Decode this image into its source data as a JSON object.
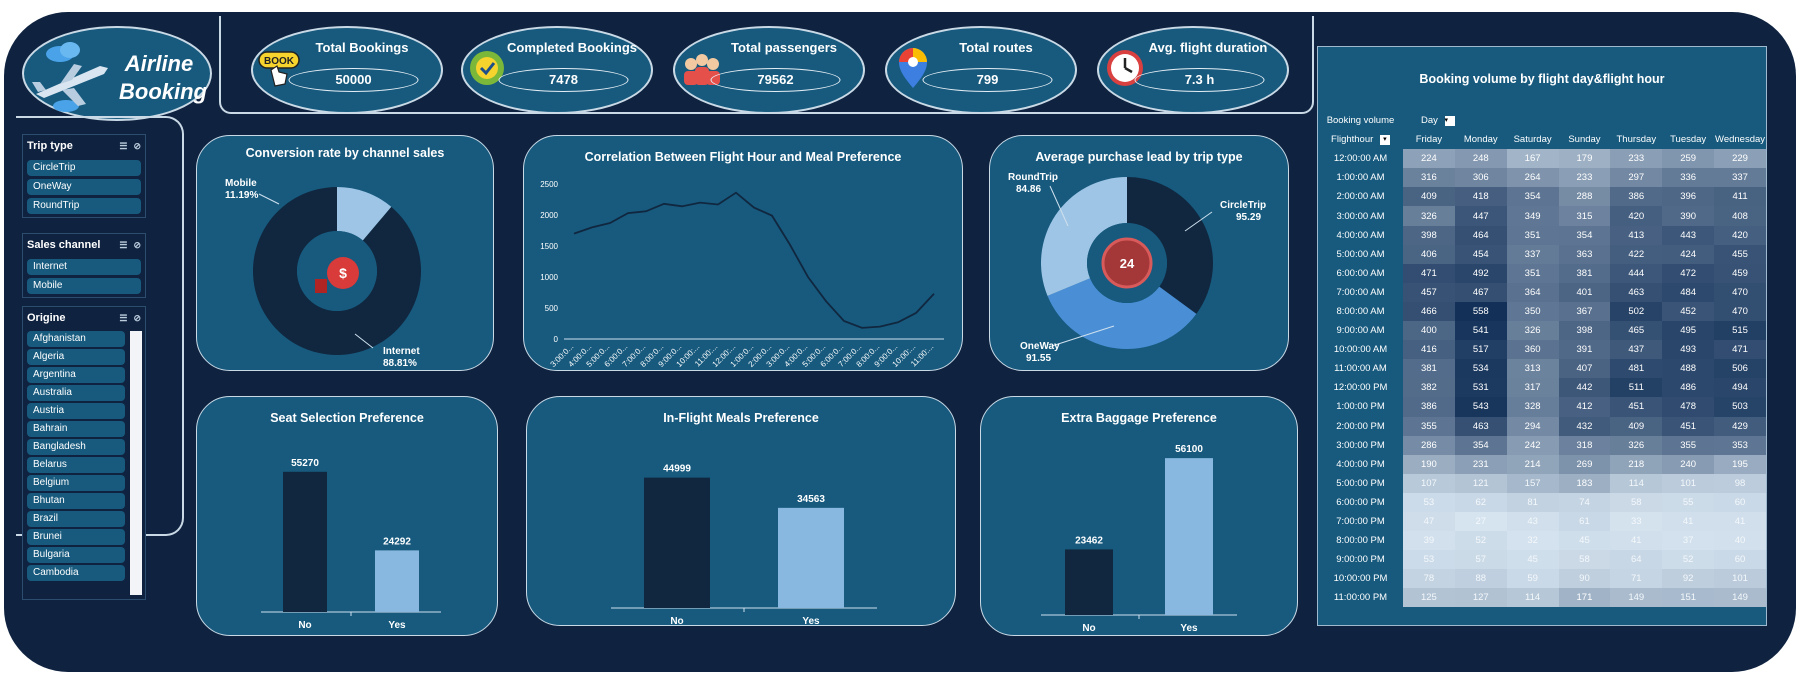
{
  "logo": {
    "line1": "Airline",
    "line2": "Booking"
  },
  "kpis": [
    {
      "label": "Total Bookings",
      "value": "50000",
      "icon": "book-icon",
      "icon_text": "BOOK"
    },
    {
      "label": "Completed Bookings",
      "value": "7478",
      "icon": "check-badge-icon"
    },
    {
      "label": "Total passengers",
      "value": "79562",
      "icon": "people-icon"
    },
    {
      "label": "Total routes",
      "value": "799",
      "icon": "map-pin-icon"
    },
    {
      "label": "Avg. flight duration",
      "value": "7.3  h",
      "icon": "clock-icon"
    }
  ],
  "slicers": {
    "trip_type": {
      "title": "Trip type",
      "items": [
        "CircleTrip",
        "OneWay",
        "RoundTrip"
      ]
    },
    "sales_channel": {
      "title": "Sales channel",
      "items": [
        "Internet",
        "Mobile"
      ]
    },
    "origine": {
      "title": "Origine",
      "items": [
        "Afghanistan",
        "Algeria",
        "Argentina",
        "Australia",
        "Austria",
        "Bahrain",
        "Bangladesh",
        "Belarus",
        "Belgium",
        "Bhutan",
        "Brazil",
        "Brunei",
        "Bulgaria",
        "Cambodia"
      ]
    }
  },
  "colors": {
    "dark": "#10273f",
    "mid": "#4a8fd6",
    "light": "#9ec5e6",
    "bar_light": "#88b8df",
    "card": "#175a7e"
  },
  "chart_data": [
    {
      "type": "pie",
      "title": "Conversion rate by channel sales",
      "categories": [
        "Mobile",
        "Internet"
      ],
      "values": [
        11.19,
        88.81
      ],
      "labels": [
        "11.19%",
        "88.81%"
      ]
    },
    {
      "type": "line",
      "title": "Correlation Between Flight Hour and Meal Preference",
      "x": [
        "3:00:0...",
        "4:00:0...",
        "5:00:0...",
        "6:00:0...",
        "7:00:0...",
        "8:00:0...",
        "9:00:0...",
        "10:00:...",
        "11:00:...",
        "12:00:...",
        "1:00:0...",
        "2:00:0...",
        "3:00:0...",
        "4:00:0...",
        "5:00:0...",
        "6:00:0...",
        "7:00:0...",
        "8:00:0...",
        "9:00:0...",
        "10:00:...",
        "11:00:..."
      ],
      "values": [
        1700,
        1800,
        1870,
        2030,
        2060,
        2180,
        2140,
        2200,
        2170,
        2360,
        2120,
        1990,
        1520,
        1000,
        610,
        290,
        180,
        200,
        270,
        420,
        730
      ],
      "ylim": [
        0,
        2500
      ],
      "yticks": [
        "0",
        "500",
        "1000",
        "1500",
        "2000",
        "2500"
      ]
    },
    {
      "type": "pie",
      "title": "Average purchase lead by trip type",
      "categories": [
        "CircleTrip",
        "OneWay",
        "RoundTrip"
      ],
      "values": [
        95.29,
        91.55,
        84.86
      ],
      "labels": [
        "95.29",
        "91.55",
        "84.86"
      ]
    },
    {
      "type": "bar",
      "title": "Seat Selection Preference",
      "categories": [
        "No",
        "Yes"
      ],
      "values": [
        55270,
        24292
      ]
    },
    {
      "type": "bar",
      "title": "In-Flight Meals Preference",
      "categories": [
        "No",
        "Yes"
      ],
      "values": [
        44999,
        34563
      ]
    },
    {
      "type": "bar",
      "title": "Extra Baggage Preference",
      "categories": [
        "No",
        "Yes"
      ],
      "values": [
        23462,
        56100
      ]
    },
    {
      "type": "heatmap",
      "title": "Booking volume by flight day&flight hour",
      "corner_label": "Booking volume",
      "column_field": "Day",
      "row_field": "Flighthour",
      "columns": [
        "Friday",
        "Monday",
        "Saturday",
        "Sunday",
        "Thursday",
        "Tuesday",
        "Wednesday"
      ],
      "rows": [
        "12:00:00 AM",
        "1:00:00 AM",
        "2:00:00 AM",
        "3:00:00 AM",
        "4:00:00 AM",
        "5:00:00 AM",
        "6:00:00 AM",
        "7:00:00 AM",
        "8:00:00 AM",
        "9:00:00 AM",
        "10:00:00 AM",
        "11:00:00 AM",
        "12:00:00 PM",
        "1:00:00 PM",
        "2:00:00 PM",
        "3:00:00 PM",
        "4:00:00 PM",
        "5:00:00 PM",
        "6:00:00 PM",
        "7:00:00 PM",
        "8:00:00 PM",
        "9:00:00 PM",
        "10:00:00 PM",
        "11:00:00 PM"
      ],
      "values": [
        [
          224,
          248,
          167,
          179,
          233,
          259,
          229
        ],
        [
          316,
          306,
          264,
          233,
          297,
          336,
          337
        ],
        [
          409,
          418,
          354,
          288,
          386,
          396,
          411
        ],
        [
          326,
          447,
          349,
          315,
          420,
          390,
          408
        ],
        [
          398,
          464,
          351,
          354,
          413,
          443,
          420
        ],
        [
          406,
          454,
          337,
          363,
          422,
          424,
          455
        ],
        [
          471,
          492,
          351,
          381,
          444,
          472,
          459
        ],
        [
          457,
          467,
          364,
          401,
          463,
          484,
          470
        ],
        [
          466,
          558,
          350,
          367,
          502,
          452,
          470
        ],
        [
          400,
          541,
          326,
          398,
          465,
          495,
          515
        ],
        [
          416,
          517,
          360,
          391,
          437,
          493,
          471
        ],
        [
          381,
          534,
          313,
          407,
          481,
          488,
          506
        ],
        [
          382,
          531,
          317,
          442,
          511,
          486,
          494
        ],
        [
          386,
          543,
          328,
          412,
          451,
          478,
          503
        ],
        [
          355,
          463,
          294,
          432,
          409,
          451,
          429
        ],
        [
          286,
          354,
          242,
          318,
          326,
          355,
          353
        ],
        [
          190,
          231,
          214,
          269,
          218,
          240,
          195
        ],
        [
          107,
          121,
          157,
          183,
          114,
          101,
          98
        ],
        [
          53,
          62,
          81,
          74,
          58,
          55,
          60
        ],
        [
          47,
          27,
          43,
          61,
          33,
          41,
          41
        ],
        [
          39,
          52,
          32,
          45,
          41,
          37,
          40
        ],
        [
          53,
          57,
          45,
          58,
          64,
          52,
          60
        ],
        [
          78,
          88,
          59,
          90,
          71,
          92,
          101
        ],
        [
          125,
          127,
          114,
          171,
          149,
          151,
          149
        ]
      ]
    }
  ]
}
